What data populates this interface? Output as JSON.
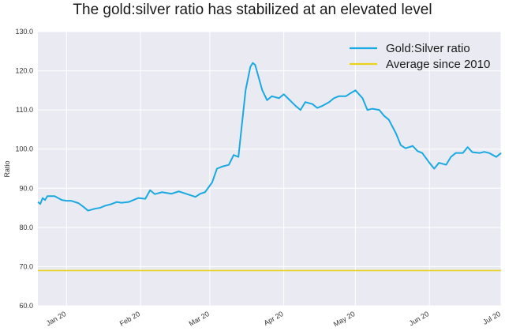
{
  "chart_data": {
    "type": "line",
    "title": "The gold:silver ratio has stabilized at an elevated level",
    "xlabel": "",
    "ylabel": "Ratio",
    "ylim": [
      60,
      130
    ],
    "yticks": [
      "60.0",
      "70.0",
      "80.0",
      "90.0",
      "100.0",
      "110.0",
      "120.0",
      "130.0"
    ],
    "xlim": [
      "2019-12-20",
      "2020-07-01"
    ],
    "xticks": [
      {
        "date": "2020-01-01",
        "label": "Jan 20"
      },
      {
        "date": "2020-02-01",
        "label": "Feb 20"
      },
      {
        "date": "2020-03-01",
        "label": "Mar 20"
      },
      {
        "date": "2020-04-01",
        "label": "Apr 20"
      },
      {
        "date": "2020-05-01",
        "label": "May 20"
      },
      {
        "date": "2020-06-01",
        "label": "Jun 20"
      },
      {
        "date": "2020-07-01",
        "label": "Jul 20"
      }
    ],
    "grid": true,
    "legend_position": "top-right",
    "series": [
      {
        "name": "Gold:Silver ratio",
        "color": "#1aa9e0",
        "x": [
          "2019-12-20",
          "2019-12-21",
          "2019-12-22",
          "2019-12-23",
          "2019-12-24",
          "2019-12-25",
          "2019-12-27",
          "2019-12-30",
          "2020-01-01",
          "2020-01-03",
          "2020-01-06",
          "2020-01-08",
          "2020-01-10",
          "2020-01-13",
          "2020-01-15",
          "2020-01-17",
          "2020-01-20",
          "2020-01-22",
          "2020-01-24",
          "2020-01-27",
          "2020-01-29",
          "2020-01-31",
          "2020-02-03",
          "2020-02-05",
          "2020-02-07",
          "2020-02-10",
          "2020-02-12",
          "2020-02-14",
          "2020-02-17",
          "2020-02-19",
          "2020-02-21",
          "2020-02-24",
          "2020-02-26",
          "2020-02-28",
          "2020-03-02",
          "2020-03-04",
          "2020-03-06",
          "2020-03-09",
          "2020-03-11",
          "2020-03-13",
          "2020-03-16",
          "2020-03-18",
          "2020-03-19",
          "2020-03-20",
          "2020-03-23",
          "2020-03-25",
          "2020-03-27",
          "2020-03-30",
          "2020-04-01",
          "2020-04-03",
          "2020-04-06",
          "2020-04-08",
          "2020-04-10",
          "2020-04-13",
          "2020-04-15",
          "2020-04-17",
          "2020-04-20",
          "2020-04-22",
          "2020-04-24",
          "2020-04-27",
          "2020-04-29",
          "2020-05-01",
          "2020-05-04",
          "2020-05-06",
          "2020-05-08",
          "2020-05-11",
          "2020-05-13",
          "2020-05-15",
          "2020-05-18",
          "2020-05-20",
          "2020-05-22",
          "2020-05-25",
          "2020-05-27",
          "2020-05-29",
          "2020-06-01",
          "2020-06-03",
          "2020-06-05",
          "2020-06-08",
          "2020-06-10",
          "2020-06-12",
          "2020-06-15",
          "2020-06-17",
          "2020-06-19",
          "2020-06-22",
          "2020-06-24",
          "2020-06-26",
          "2020-06-29",
          "2020-07-01"
        ],
        "values": [
          86.5,
          86.0,
          87.5,
          87.0,
          88.0,
          88.0,
          88.0,
          87.0,
          86.8,
          86.8,
          86.2,
          85.3,
          84.3,
          84.8,
          85.0,
          85.5,
          86.0,
          86.5,
          86.3,
          86.5,
          87.0,
          87.5,
          87.3,
          89.5,
          88.5,
          89.0,
          88.8,
          88.6,
          89.2,
          88.8,
          88.4,
          87.8,
          88.6,
          89.0,
          91.5,
          95.0,
          95.5,
          96.0,
          98.5,
          98.0,
          115.0,
          121.0,
          122.0,
          121.5,
          115.0,
          112.5,
          113.5,
          113.0,
          114.0,
          112.8,
          111.0,
          110.0,
          112.0,
          111.5,
          110.5,
          111.0,
          112.0,
          113.0,
          113.5,
          113.5,
          114.3,
          115.0,
          113.0,
          110.0,
          110.3,
          110.0,
          108.5,
          107.5,
          104.0,
          101.0,
          100.2,
          100.8,
          99.5,
          99.0,
          96.5,
          95.0,
          96.5,
          96.0,
          98.0,
          99.0,
          99.0,
          100.5,
          99.2,
          99.0,
          99.3,
          99.0,
          98.0,
          99.0
        ]
      },
      {
        "name": "Average since 2010",
        "color": "#e8d21e",
        "x": [
          "2019-12-20",
          "2020-07-01"
        ],
        "values": [
          69.0,
          69.0
        ]
      }
    ]
  }
}
